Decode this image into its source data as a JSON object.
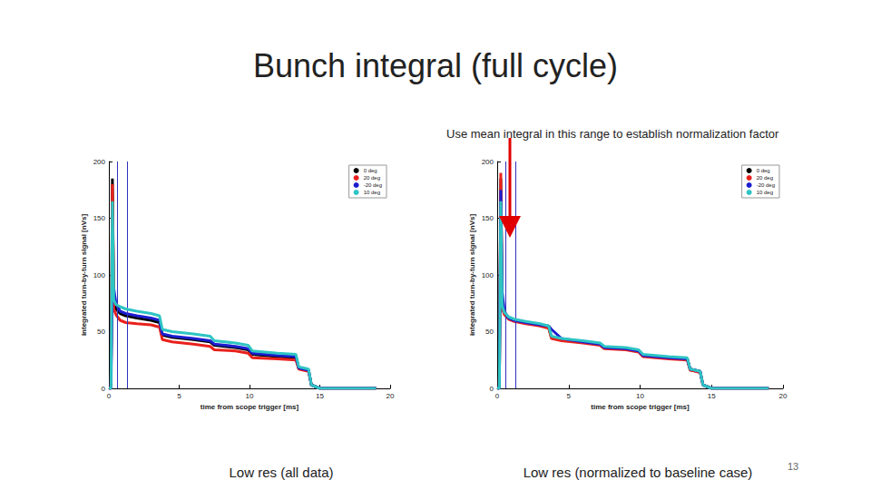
{
  "page": {
    "title": "Bunch integral (full cycle)",
    "number": 13
  },
  "chart_data": [
    {
      "type": "line",
      "caption": "Low res (all data)",
      "x_label": "time from scope trigger [ms]",
      "y_label": "integrated turn-by-turn signal [nVs]",
      "xlim": [
        0,
        20
      ],
      "xticks": [
        0,
        5,
        10,
        15,
        20
      ],
      "ylim": [
        0,
        200
      ],
      "yticks": [
        0,
        50,
        100,
        150,
        200
      ],
      "grid": false,
      "legend": "upper right",
      "line_style": "solid",
      "vlines": [
        0.6,
        1.3
      ],
      "x": [
        0,
        0.15,
        0.25,
        0.35,
        0.5,
        0.8,
        1.2,
        2,
        3,
        3.6,
        3.8,
        4.5,
        6,
        7.2,
        7.5,
        9,
        9.9,
        10.2,
        12,
        13.3,
        13.5,
        14.2,
        14.4,
        15,
        17,
        19
      ],
      "series": [
        {
          "name": "0 deg",
          "color": "#000000",
          "values": [
            0,
            0,
            185,
            75,
            70,
            66,
            64,
            62,
            60,
            58,
            47,
            45,
            43,
            41,
            38,
            36,
            34,
            30,
            28,
            27,
            18,
            16,
            3,
            0,
            0,
            0
          ]
        },
        {
          "name": "20 deg",
          "color": "#e8211c",
          "values": [
            0,
            0,
            180,
            70,
            65,
            60,
            58,
            57,
            56,
            54,
            43,
            41,
            39,
            37,
            34,
            33,
            31,
            27,
            26,
            25,
            17,
            15,
            3,
            0,
            0,
            0
          ]
        },
        {
          "name": "-20 deg",
          "color": "#1c1cd0",
          "values": [
            0,
            0,
            90,
            88,
            75,
            68,
            66,
            64,
            62,
            60,
            48,
            46,
            44,
            42,
            39,
            37,
            35,
            31,
            29,
            28,
            18,
            16,
            3,
            0,
            0,
            0
          ]
        },
        {
          "name": "10 deg",
          "color": "#2ec4c4",
          "values": [
            0,
            0,
            165,
            78,
            74,
            72,
            70,
            68,
            66,
            64,
            52,
            50,
            48,
            46,
            42,
            40,
            38,
            33,
            31,
            30,
            19,
            17,
            3,
            0,
            0,
            0
          ]
        }
      ]
    },
    {
      "type": "line",
      "caption": "Low res (normalized to baseline case)",
      "annotation": "Use mean integral in this range to establish normalization factor",
      "x_label": "time from scope trigger [ms]",
      "y_label": "integrated turn-by-turn signal [nVs]",
      "xlim": [
        0,
        20
      ],
      "xticks": [
        0,
        5,
        10,
        15,
        20
      ],
      "ylim": [
        0,
        200
      ],
      "yticks": [
        0,
        50,
        100,
        150,
        200
      ],
      "grid": false,
      "legend": "upper right",
      "line_style": "solid",
      "vlines": [
        0.6,
        1.3
      ],
      "x": [
        0,
        0.15,
        0.25,
        0.35,
        0.5,
        0.8,
        1.2,
        2,
        3,
        3.6,
        3.8,
        4.5,
        6,
        7.2,
        7.5,
        9,
        9.9,
        10.2,
        12,
        13.3,
        13.5,
        14.2,
        14.4,
        15,
        17,
        19
      ],
      "series": [
        {
          "name": "0 deg",
          "color": "#000000",
          "values": [
            0,
            0,
            185,
            72,
            66,
            62,
            60,
            58,
            56,
            54,
            45,
            43,
            41,
            39,
            36,
            35,
            33,
            29,
            27,
            26,
            17,
            15,
            3,
            0,
            0,
            0
          ]
        },
        {
          "name": "20 deg",
          "color": "#e8211c",
          "values": [
            0,
            0,
            190,
            71,
            65,
            61,
            59,
            57,
            55,
            53,
            44,
            42,
            40,
            38,
            35,
            34,
            32,
            28,
            26,
            25,
            16,
            14,
            3,
            0,
            0,
            0
          ]
        },
        {
          "name": "-20 deg",
          "color": "#1c1cd0",
          "values": [
            0,
            0,
            175,
            85,
            68,
            62,
            60,
            58,
            56,
            55,
            52,
            44,
            41,
            39,
            36,
            35,
            33,
            29,
            27,
            26,
            17,
            15,
            3,
            0,
            0,
            0
          ]
        },
        {
          "name": "10 deg",
          "color": "#2ec4c4",
          "values": [
            0,
            0,
            165,
            73,
            67,
            63,
            61,
            59,
            57,
            55,
            46,
            44,
            42,
            40,
            37,
            36,
            34,
            30,
            28,
            27,
            17,
            15,
            3,
            0,
            0,
            0
          ]
        }
      ]
    }
  ]
}
